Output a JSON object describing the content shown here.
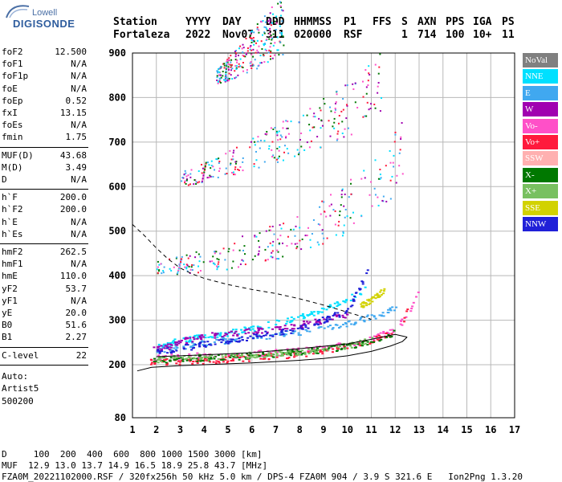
{
  "logo": {
    "top": "Lowell",
    "bottom": "DIGISONDE"
  },
  "header": {
    "labels": [
      "Station",
      "YYYY",
      "DAY",
      "DDD",
      "HHMMSS",
      "P1",
      "FFS",
      "S",
      "AXN",
      "PPS",
      "IGA",
      "PS"
    ],
    "values": [
      "Fortaleza",
      "2022",
      "Nov07",
      "311",
      "020000",
      "RSF",
      "",
      "1",
      "714",
      "100",
      "10+",
      "11"
    ]
  },
  "params": {
    "group1": [
      {
        "k": "foF2",
        "v": "12.500"
      },
      {
        "k": "foF1",
        "v": "N/A"
      },
      {
        "k": "foF1p",
        "v": "N/A"
      },
      {
        "k": "foE",
        "v": "N/A"
      },
      {
        "k": "foEp",
        "v": "0.52"
      },
      {
        "k": "fxI",
        "v": "13.15"
      },
      {
        "k": "foEs",
        "v": "N/A"
      },
      {
        "k": "fmin",
        "v": "1.75"
      }
    ],
    "group2": [
      {
        "k": "MUF(D)",
        "v": "43.68"
      },
      {
        "k": "M(D)",
        "v": "3.49"
      },
      {
        "k": "D",
        "v": "N/A"
      }
    ],
    "group3": [
      {
        "k": "h`F",
        "v": "200.0"
      },
      {
        "k": "h`F2",
        "v": "200.0"
      },
      {
        "k": "h`E",
        "v": "N/A"
      },
      {
        "k": "h`Es",
        "v": "N/A"
      }
    ],
    "group4": [
      {
        "k": "hmF2",
        "v": "262.5"
      },
      {
        "k": "hmF1",
        "v": "N/A"
      },
      {
        "k": "hmE",
        "v": "110.0"
      },
      {
        "k": "yF2",
        "v": "53.7"
      },
      {
        "k": "yF1",
        "v": "N/A"
      },
      {
        "k": "yE",
        "v": "20.0"
      },
      {
        "k": "B0",
        "v": "51.6"
      },
      {
        "k": "B1",
        "v": "2.27"
      }
    ],
    "group5": [
      {
        "k": "C-level",
        "v": "22"
      }
    ],
    "auto_label": "Auto:",
    "auto_name": "Artist5",
    "auto_version": "500200"
  },
  "legend": [
    {
      "label": "NoVal",
      "color": "#808080"
    },
    {
      "label": "NNE",
      "color": "#00e0ff"
    },
    {
      "label": "E",
      "color": "#40a8f0"
    },
    {
      "label": "W",
      "color": "#a000b0"
    },
    {
      "label": "Vo-",
      "color": "#ff50c8"
    },
    {
      "label": "Vo+",
      "color": "#ff1a3c"
    },
    {
      "label": "SSW",
      "color": "#ffb0b0"
    },
    {
      "label": "X-",
      "color": "#007800"
    },
    {
      "label": "X+",
      "color": "#78c060"
    },
    {
      "label": "SSE",
      "color": "#d2d200"
    },
    {
      "label": "NNW",
      "color": "#2020d8"
    }
  ],
  "footer": {
    "line1": "D     100  200  400  600  800 1000 1500 3000 [km]",
    "line2": "MUF  12.9 13.0 13.7 14.9 16.5 18.9 25.8 43.7 [MHz]",
    "line3": "FZA0M_20221102000.RSF / 320fx256h 50 kHz 5.0 km / DPS-4 FZA0M 904 / 3.9 S 321.6 E   Ion2Png 1.3.20"
  },
  "chart_data": {
    "type": "scatter",
    "xlim": [
      1,
      17
    ],
    "ylim": [
      80,
      900
    ],
    "x_ticks": [
      1,
      2,
      3,
      4,
      5,
      6,
      7,
      8,
      9,
      10,
      11,
      12,
      13,
      14,
      15,
      16,
      17
    ],
    "y_ticks": [
      80,
      200,
      300,
      400,
      500,
      600,
      700,
      800,
      900
    ],
    "grid": true,
    "traces": [
      {
        "name": "NoVal",
        "color": "#808080",
        "x": [],
        "y": []
      },
      {
        "name": "NNE",
        "color": "#00e0ff",
        "x": [
          2.0,
          3.0,
          4.0,
          5.0,
          6.0,
          7.0,
          8.0,
          9.0,
          10.0,
          10.8
        ],
        "y": [
          238,
          255,
          262,
          270,
          280,
          292,
          305,
          322,
          345,
          372
        ]
      },
      {
        "name": "E",
        "color": "#40a8f0",
        "x": [
          1.9,
          3.0,
          4.0,
          5.0,
          6.0,
          7.0,
          8.0,
          9.0,
          10.0,
          11.0,
          12.0
        ],
        "y": [
          231,
          240,
          247,
          253,
          259,
          265,
          272,
          281,
          292,
          306,
          325
        ]
      },
      {
        "name": "W",
        "color": "#a000b0",
        "x": [
          1.8,
          2.5,
          3.0,
          4.0,
          5.0,
          6.0,
          7.0,
          8.0,
          9.0,
          10.0
        ],
        "y": [
          232,
          240,
          252,
          262,
          268,
          274,
          280,
          288,
          298,
          312
        ]
      },
      {
        "name": "Vo-",
        "color": "#ff50c8",
        "x": [
          1.7,
          3.0,
          4.0,
          5.0,
          6.0,
          7.0,
          8.0,
          9.0,
          10.0,
          11.0,
          12.0,
          12.5,
          13.0
        ],
        "y": [
          214,
          216,
          219,
          221,
          223,
          226,
          230,
          236,
          244,
          256,
          280,
          310,
          370
        ]
      },
      {
        "name": "Vo+",
        "color": "#ff1a3c",
        "x": [
          1.7,
          2.5,
          3.0,
          4.0,
          5.0,
          6.0,
          7.0,
          8.0,
          9.0,
          10.0,
          11.0,
          11.5,
          12.0,
          12.3,
          12.5
        ],
        "y": [
          204,
          205,
          206,
          208,
          211,
          214,
          218,
          223,
          229,
          238,
          252,
          262,
          276,
          295,
          330
        ]
      },
      {
        "name": "SSW",
        "color": "#ffb0b0",
        "x": [],
        "y": []
      },
      {
        "name": "X-",
        "color": "#007800",
        "x": [
          1.8,
          3.0,
          4.0,
          5.0,
          6.0,
          7.0,
          8.0,
          9.0,
          10.0,
          11.0,
          12.0
        ],
        "y": [
          208,
          211,
          214,
          216,
          219,
          222,
          226,
          232,
          240,
          252,
          272
        ]
      },
      {
        "name": "X+",
        "color": "#78c060",
        "x": [
          2.0,
          3.0,
          4.0,
          5.0,
          6.0,
          7.0,
          8.0,
          9.0,
          10.0,
          11.0
        ],
        "y": [
          210,
          213,
          216,
          218,
          221,
          224,
          228,
          234,
          242,
          255
        ]
      },
      {
        "name": "SSE",
        "color": "#d2d200",
        "x": [
          10.5,
          11.0,
          11.5
        ],
        "y": [
          330,
          345,
          365
        ]
      },
      {
        "name": "NNW",
        "color": "#2020d8",
        "x": [
          1.8,
          3.0,
          4.0,
          6.0,
          8.0,
          10.0,
          11.0
        ],
        "y": [
          226,
          236,
          244,
          262,
          280,
          320,
          430
        ]
      }
    ],
    "multi_hop_traces": [
      {
        "x": [
          2.0,
          3.0,
          4.0,
          5.0,
          6.0,
          7.0,
          8.0,
          9.0,
          10.0,
          11.0,
          11.8,
          12.3
        ],
        "y": [
          400,
          405,
          410,
          416,
          424,
          434,
          448,
          468,
          495,
          530,
          575,
          630
        ]
      },
      {
        "x": [
          3.0,
          4.0,
          5.0,
          6.0,
          7.0,
          8.0,
          9.0,
          10.0,
          10.8,
          11.4
        ],
        "y": [
          600,
          612,
          625,
          640,
          655,
          672,
          690,
          710,
          738,
          770
        ]
      },
      {
        "x": [
          4.5,
          5.0,
          5.5,
          6.0,
          6.5,
          7.0,
          7.3
        ],
        "y": [
          830,
          840,
          850,
          862,
          875,
          888,
          898
        ]
      }
    ],
    "profile_solid": {
      "x": [
        1.2,
        1.8,
        3.0,
        4.0,
        5.0,
        6.0,
        7.0,
        8.0,
        9.0,
        10.0,
        11.0,
        11.8,
        12.3,
        12.5
      ],
      "y": [
        186,
        194,
        198,
        200,
        202,
        204,
        207,
        210,
        214,
        220,
        230,
        242,
        252,
        262
      ]
    },
    "profile_solid_upper": {
      "x": [
        2.0,
        3.0,
        4.0,
        6.0,
        8.0,
        10.0,
        11.0,
        12.0,
        12.5
      ],
      "y": [
        218,
        220,
        222,
        227,
        236,
        247,
        257,
        268,
        262
      ]
    },
    "muf_dashed": {
      "x": [
        1.0,
        1.5,
        2.0,
        2.5,
        3.0,
        3.5,
        4.0,
        5.0,
        6.0,
        7.0,
        8.0,
        9.0,
        10.0,
        11.0
      ],
      "y": [
        515,
        490,
        462,
        437,
        417,
        404,
        394,
        380,
        369,
        360,
        348,
        334,
        318,
        302
      ]
    }
  }
}
